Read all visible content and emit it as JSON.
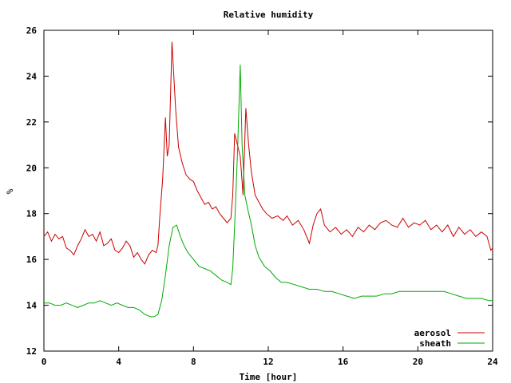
{
  "chart_data": {
    "type": "line",
    "title": "Relative humidity",
    "xlabel": "Time [hour]",
    "ylabel": "%",
    "xlim": [
      0,
      24
    ],
    "ylim": [
      12,
      26
    ],
    "xticks": [
      0,
      4,
      8,
      12,
      16,
      20,
      24
    ],
    "yticks": [
      12,
      14,
      16,
      18,
      20,
      22,
      24,
      26
    ],
    "grid": false,
    "legend_position": "bottom-right",
    "series": [
      {
        "name": "aerosol",
        "color": "#cc0000",
        "points": [
          [
            0,
            17.0
          ],
          [
            0.2,
            17.2
          ],
          [
            0.4,
            16.8
          ],
          [
            0.6,
            17.1
          ],
          [
            0.8,
            16.9
          ],
          [
            1.0,
            17.0
          ],
          [
            1.2,
            16.5
          ],
          [
            1.4,
            16.4
          ],
          [
            1.6,
            16.2
          ],
          [
            1.8,
            16.6
          ],
          [
            2.0,
            16.9
          ],
          [
            2.2,
            17.3
          ],
          [
            2.4,
            17.0
          ],
          [
            2.6,
            17.1
          ],
          [
            2.8,
            16.8
          ],
          [
            3.0,
            17.2
          ],
          [
            3.2,
            16.6
          ],
          [
            3.4,
            16.7
          ],
          [
            3.6,
            16.9
          ],
          [
            3.8,
            16.4
          ],
          [
            4.0,
            16.3
          ],
          [
            4.2,
            16.5
          ],
          [
            4.4,
            16.8
          ],
          [
            4.6,
            16.6
          ],
          [
            4.8,
            16.1
          ],
          [
            5.0,
            16.3
          ],
          [
            5.2,
            16.0
          ],
          [
            5.4,
            15.8
          ],
          [
            5.6,
            16.2
          ],
          [
            5.8,
            16.4
          ],
          [
            6.0,
            16.3
          ],
          [
            6.1,
            16.6
          ],
          [
            6.2,
            17.9
          ],
          [
            6.35,
            19.5
          ],
          [
            6.5,
            22.2
          ],
          [
            6.6,
            20.5
          ],
          [
            6.7,
            21.0
          ],
          [
            6.85,
            25.5
          ],
          [
            6.95,
            24.0
          ],
          [
            7.05,
            22.5
          ],
          [
            7.2,
            20.9
          ],
          [
            7.4,
            20.2
          ],
          [
            7.6,
            19.7
          ],
          [
            7.8,
            19.5
          ],
          [
            8.0,
            19.4
          ],
          [
            8.2,
            19.0
          ],
          [
            8.4,
            18.7
          ],
          [
            8.6,
            18.4
          ],
          [
            8.8,
            18.5
          ],
          [
            9.0,
            18.2
          ],
          [
            9.2,
            18.3
          ],
          [
            9.4,
            18.0
          ],
          [
            9.6,
            17.8
          ],
          [
            9.8,
            17.6
          ],
          [
            10.0,
            17.8
          ],
          [
            10.1,
            18.8
          ],
          [
            10.2,
            21.5
          ],
          [
            10.35,
            21.0
          ],
          [
            10.5,
            20.5
          ],
          [
            10.65,
            18.8
          ],
          [
            10.8,
            22.6
          ],
          [
            10.95,
            21.0
          ],
          [
            11.1,
            19.8
          ],
          [
            11.3,
            18.8
          ],
          [
            11.5,
            18.5
          ],
          [
            11.7,
            18.2
          ],
          [
            11.9,
            18.0
          ],
          [
            12.2,
            17.8
          ],
          [
            12.5,
            17.9
          ],
          [
            12.8,
            17.7
          ],
          [
            13.0,
            17.9
          ],
          [
            13.3,
            17.5
          ],
          [
            13.6,
            17.7
          ],
          [
            13.9,
            17.3
          ],
          [
            14.2,
            16.7
          ],
          [
            14.4,
            17.5
          ],
          [
            14.6,
            18.0
          ],
          [
            14.8,
            18.2
          ],
          [
            15.0,
            17.5
          ],
          [
            15.3,
            17.2
          ],
          [
            15.6,
            17.4
          ],
          [
            15.9,
            17.1
          ],
          [
            16.2,
            17.3
          ],
          [
            16.5,
            17.0
          ],
          [
            16.8,
            17.4
          ],
          [
            17.1,
            17.2
          ],
          [
            17.4,
            17.5
          ],
          [
            17.7,
            17.3
          ],
          [
            18.0,
            17.6
          ],
          [
            18.3,
            17.7
          ],
          [
            18.6,
            17.5
          ],
          [
            18.9,
            17.4
          ],
          [
            19.2,
            17.8
          ],
          [
            19.5,
            17.4
          ],
          [
            19.8,
            17.6
          ],
          [
            20.1,
            17.5
          ],
          [
            20.4,
            17.7
          ],
          [
            20.7,
            17.3
          ],
          [
            21.0,
            17.5
          ],
          [
            21.3,
            17.2
          ],
          [
            21.6,
            17.5
          ],
          [
            21.9,
            17.0
          ],
          [
            22.2,
            17.4
          ],
          [
            22.5,
            17.1
          ],
          [
            22.8,
            17.3
          ],
          [
            23.1,
            17.0
          ],
          [
            23.4,
            17.2
          ],
          [
            23.7,
            17.0
          ],
          [
            23.9,
            16.4
          ],
          [
            24.0,
            16.5
          ]
        ]
      },
      {
        "name": "sheath",
        "color": "#00aa00",
        "points": [
          [
            0,
            14.1
          ],
          [
            0.3,
            14.1
          ],
          [
            0.6,
            14.0
          ],
          [
            0.9,
            14.0
          ],
          [
            1.2,
            14.1
          ],
          [
            1.5,
            14.0
          ],
          [
            1.8,
            13.9
          ],
          [
            2.1,
            14.0
          ],
          [
            2.4,
            14.1
          ],
          [
            2.7,
            14.1
          ],
          [
            3.0,
            14.2
          ],
          [
            3.3,
            14.1
          ],
          [
            3.6,
            14.0
          ],
          [
            3.9,
            14.1
          ],
          [
            4.2,
            14.0
          ],
          [
            4.5,
            13.9
          ],
          [
            4.8,
            13.9
          ],
          [
            5.1,
            13.8
          ],
          [
            5.4,
            13.6
          ],
          [
            5.7,
            13.5
          ],
          [
            5.9,
            13.5
          ],
          [
            6.1,
            13.6
          ],
          [
            6.3,
            14.2
          ],
          [
            6.5,
            15.3
          ],
          [
            6.7,
            16.6
          ],
          [
            6.9,
            17.4
          ],
          [
            7.1,
            17.5
          ],
          [
            7.3,
            17.0
          ],
          [
            7.5,
            16.6
          ],
          [
            7.7,
            16.3
          ],
          [
            7.9,
            16.1
          ],
          [
            8.1,
            15.9
          ],
          [
            8.3,
            15.7
          ],
          [
            8.6,
            15.6
          ],
          [
            8.9,
            15.5
          ],
          [
            9.2,
            15.3
          ],
          [
            9.5,
            15.1
          ],
          [
            9.8,
            15.0
          ],
          [
            10.0,
            14.9
          ],
          [
            10.1,
            15.6
          ],
          [
            10.2,
            17.5
          ],
          [
            10.35,
            20.6
          ],
          [
            10.5,
            24.5
          ],
          [
            10.6,
            21.0
          ],
          [
            10.75,
            18.8
          ],
          [
            10.9,
            18.2
          ],
          [
            11.1,
            17.5
          ],
          [
            11.3,
            16.6
          ],
          [
            11.5,
            16.1
          ],
          [
            11.8,
            15.7
          ],
          [
            12.1,
            15.5
          ],
          [
            12.4,
            15.2
          ],
          [
            12.7,
            15.0
          ],
          [
            13.0,
            15.0
          ],
          [
            13.4,
            14.9
          ],
          [
            13.8,
            14.8
          ],
          [
            14.2,
            14.7
          ],
          [
            14.6,
            14.7
          ],
          [
            15.0,
            14.6
          ],
          [
            15.4,
            14.6
          ],
          [
            15.8,
            14.5
          ],
          [
            16.2,
            14.4
          ],
          [
            16.6,
            14.3
          ],
          [
            17.0,
            14.4
          ],
          [
            17.4,
            14.4
          ],
          [
            17.8,
            14.4
          ],
          [
            18.2,
            14.5
          ],
          [
            18.6,
            14.5
          ],
          [
            19.0,
            14.6
          ],
          [
            19.4,
            14.6
          ],
          [
            19.8,
            14.6
          ],
          [
            20.2,
            14.6
          ],
          [
            20.6,
            14.6
          ],
          [
            21.0,
            14.6
          ],
          [
            21.4,
            14.6
          ],
          [
            21.8,
            14.5
          ],
          [
            22.2,
            14.4
          ],
          [
            22.6,
            14.3
          ],
          [
            23.0,
            14.3
          ],
          [
            23.4,
            14.3
          ],
          [
            23.8,
            14.2
          ],
          [
            24.0,
            14.2
          ]
        ]
      }
    ]
  }
}
